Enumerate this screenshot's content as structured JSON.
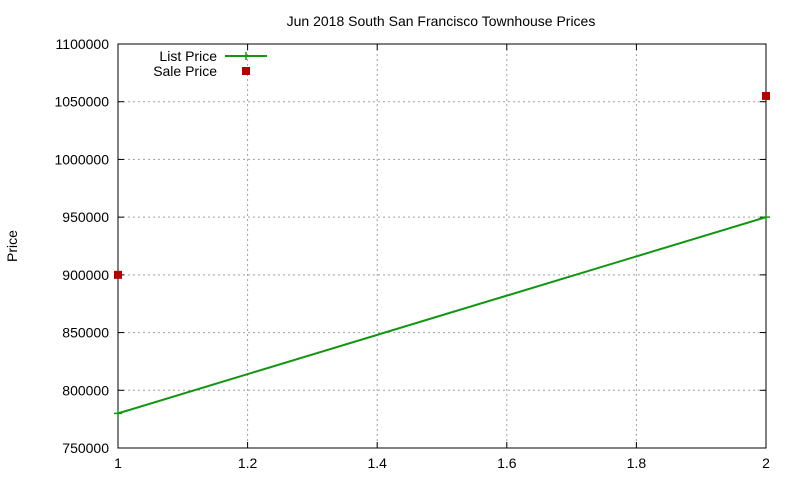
{
  "chart_data": {
    "type": "line",
    "title": "Jun 2018 South San Francisco Townhouse Prices",
    "xlabel": "",
    "ylabel": "Price",
    "xlim": [
      1,
      2
    ],
    "ylim": [
      750000,
      1100000
    ],
    "x_ticks": [
      1,
      1.2,
      1.4,
      1.6,
      1.8,
      2
    ],
    "x_tick_labels": [
      "1",
      "1.2",
      "1.4",
      "1.6",
      "1.8",
      "2"
    ],
    "y_ticks": [
      750000,
      800000,
      850000,
      900000,
      950000,
      1000000,
      1050000,
      1100000
    ],
    "y_tick_labels": [
      "750000",
      "800000",
      "850000",
      "900000",
      "950000",
      "1000000",
      "1050000",
      "1100000"
    ],
    "grid": true,
    "legend_position": "top-left",
    "series": [
      {
        "name": "List Price",
        "style": "line-with-plus-markers",
        "color": "#129612",
        "points": [
          {
            "x": 1,
            "y": 780000
          },
          {
            "x": 2,
            "y": 950000
          }
        ]
      },
      {
        "name": "Sale Price",
        "style": "square-markers",
        "color": "#b50000",
        "points": [
          {
            "x": 1,
            "y": 900000
          },
          {
            "x": 2,
            "y": 1055000
          }
        ]
      }
    ]
  }
}
